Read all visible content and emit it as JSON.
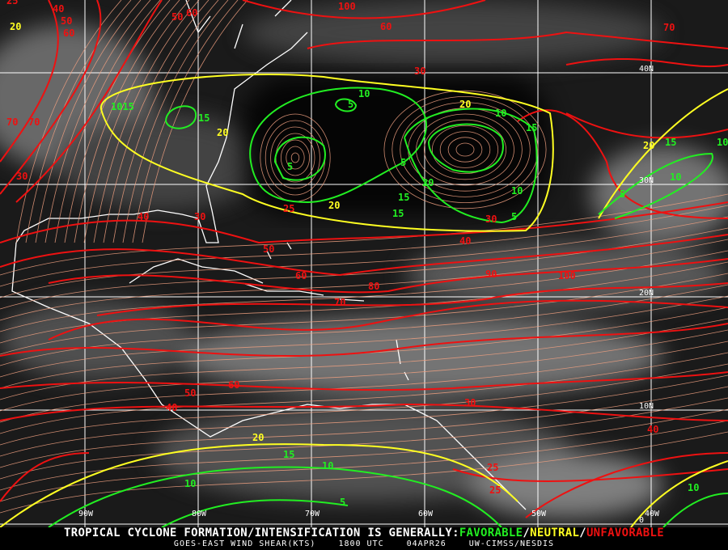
{
  "map": {
    "longitude_labels": [
      "90W",
      "80W",
      "70W",
      "60W",
      "50W",
      "40W"
    ],
    "latitude_labels": [
      "40N",
      "30N",
      "20N",
      "10N",
      "0"
    ],
    "colors": {
      "favorable": "#22ee22",
      "neutral": "#ffff22",
      "unfavorable": "#ee1111",
      "streamline": "#f0a080",
      "coast": "#ffffff"
    },
    "contour_labels": {
      "red": [
        "40",
        "50",
        "60",
        "50",
        "100",
        "60",
        "70",
        "60",
        "70",
        "25",
        "30",
        "70",
        "30",
        "40",
        "30",
        "25",
        "40",
        "30",
        "50",
        "60",
        "70",
        "80",
        "90",
        "100",
        "50",
        "60",
        "40",
        "30",
        "25",
        "25",
        "40"
      ],
      "yellow": [
        "20",
        "20",
        "20",
        "20",
        "20",
        "20"
      ],
      "green": [
        "10",
        "15",
        "5",
        "10",
        "5",
        "5",
        "15",
        "20",
        "15",
        "10",
        "5",
        "15",
        "10",
        "15",
        "10",
        "5",
        "10",
        "15",
        "10",
        "10",
        "5",
        "1015"
      ]
    }
  },
  "footer": {
    "headline_prefix": "TROPICAL CYCLONE FORMATION/INTENSIFICATION IS GENERALLY:",
    "favorable": "FAVORABLE",
    "sep1": "/",
    "neutral": "NEUTRAL",
    "sep2": "/",
    "unfavorable": "UNFAVORABLE",
    "product": "GOES-EAST WIND SHEAR(KTS)",
    "time": "1800 UTC",
    "date": "04APR26",
    "source": "UW-CIMSS/NESDIS"
  }
}
